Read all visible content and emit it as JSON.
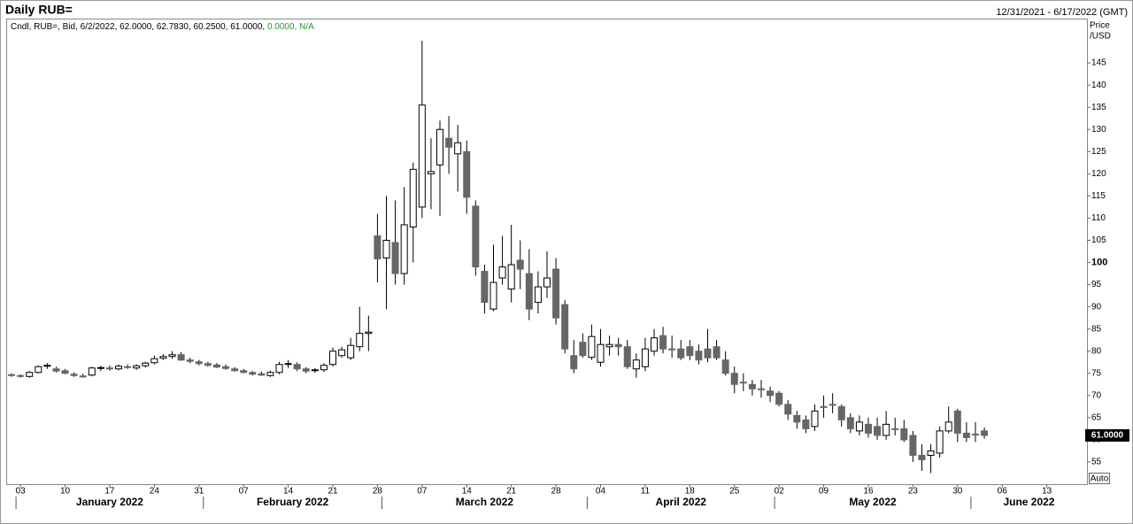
{
  "header": {
    "title": "Daily RUB=",
    "range": "12/31/2021 - 6/17/2022 (GMT)"
  },
  "chart_data": {
    "type": "candlestick",
    "legend_text": "Cndl, RUB=, Bid, 6/2/2022, 62.0000, 62.7830, 60.2500, 61.0000,",
    "legend_change": "0.0000, N/A",
    "y_label_1": "Price",
    "y_label_2": "/USD",
    "last_price_label": "61.0000",
    "auto_button": "Auto",
    "up_color": "#ffffff",
    "down_color": "#666666",
    "categories": [
      "2021-12-31",
      "2022-01-03",
      "2022-01-04",
      "2022-01-05",
      "2022-01-06",
      "2022-01-07",
      "2022-01-10",
      "2022-01-11",
      "2022-01-12",
      "2022-01-13",
      "2022-01-14",
      "2022-01-17",
      "2022-01-18",
      "2022-01-19",
      "2022-01-20",
      "2022-01-21",
      "2022-01-24",
      "2022-01-25",
      "2022-01-26",
      "2022-01-27",
      "2022-01-28",
      "2022-01-31",
      "2022-02-01",
      "2022-02-02",
      "2022-02-03",
      "2022-02-04",
      "2022-02-07",
      "2022-02-08",
      "2022-02-09",
      "2022-02-10",
      "2022-02-11",
      "2022-02-14",
      "2022-02-15",
      "2022-02-16",
      "2022-02-17",
      "2022-02-18",
      "2022-02-21",
      "2022-02-22",
      "2022-02-23",
      "2022-02-24",
      "2022-02-25",
      "2022-02-28",
      "2022-03-01",
      "2022-03-02",
      "2022-03-03",
      "2022-03-04",
      "2022-03-07",
      "2022-03-08",
      "2022-03-09",
      "2022-03-10",
      "2022-03-11",
      "2022-03-14",
      "2022-03-15",
      "2022-03-16",
      "2022-03-17",
      "2022-03-18",
      "2022-03-21",
      "2022-03-22",
      "2022-03-23",
      "2022-03-24",
      "2022-03-25",
      "2022-03-28",
      "2022-03-29",
      "2022-03-30",
      "2022-03-31",
      "2022-04-01",
      "2022-04-04",
      "2022-04-05",
      "2022-04-06",
      "2022-04-07",
      "2022-04-08",
      "2022-04-11",
      "2022-04-12",
      "2022-04-13",
      "2022-04-14",
      "2022-04-15",
      "2022-04-18",
      "2022-04-19",
      "2022-04-20",
      "2022-04-21",
      "2022-04-22",
      "2022-04-25",
      "2022-04-26",
      "2022-04-27",
      "2022-04-28",
      "2022-04-29",
      "2022-05-02",
      "2022-05-03",
      "2022-05-04",
      "2022-05-05",
      "2022-05-06",
      "2022-05-09",
      "2022-05-10",
      "2022-05-11",
      "2022-05-12",
      "2022-05-13",
      "2022-05-16",
      "2022-05-17",
      "2022-05-18",
      "2022-05-19",
      "2022-05-20",
      "2022-05-23",
      "2022-05-24",
      "2022-05-25",
      "2022-05-26",
      "2022-05-27",
      "2022-05-30",
      "2022-05-31",
      "2022-06-01",
      "2022-06-02",
      "2022-06-03",
      "2022-06-06",
      "2022-06-07",
      "2022-06-08",
      "2022-06-09",
      "2022-06-10",
      "2022-06-13",
      "2022-06-14",
      "2022-06-15",
      "2022-06-16",
      "2022-06-17"
    ],
    "open": [
      74.7,
      74.5,
      74.3,
      75.2,
      76.6,
      76,
      75.6,
      74.8,
      74.4,
      74.6,
      76.1,
      76.2,
      76,
      76.5,
      76.2,
      76.7,
      77.4,
      78.4,
      78.8,
      79.2,
      78,
      77.6,
      77.2,
      76.9,
      76.5,
      76,
      75.6,
      75.2,
      74.9,
      74.5,
      75.2,
      77,
      77,
      76,
      75.6,
      75.8,
      77,
      79,
      78.5,
      81,
      84,
      106,
      101,
      104.5,
      97.5,
      108,
      112.5,
      120,
      122,
      128,
      124.5,
      125,
      112.7,
      98,
      89.5,
      96.5,
      94,
      100.5,
      97.5,
      91,
      94.5,
      98.5,
      90.5,
      79,
      82,
      78.6,
      77.5,
      81,
      81.5,
      81,
      76,
      76.5,
      80,
      83.5,
      80.5,
      80.5,
      81,
      80,
      80.5,
      81,
      78,
      75,
      73,
      72.5,
      71.5,
      71,
      70.5,
      68,
      65.5,
      64.5,
      63,
      67.5,
      68,
      67.5,
      65,
      62,
      63.5,
      63,
      61,
      62.5,
      62.5,
      61,
      56.5,
      56.5,
      57,
      62,
      66.5,
      61.5,
      61.3,
      62,
      null,
      null,
      null,
      null,
      null,
      null,
      null,
      null,
      null,
      null,
      null
    ],
    "high": [
      75,
      74.8,
      75.5,
      76.8,
      77.3,
      76.5,
      76,
      75.2,
      74.9,
      76.5,
      76.7,
      76.8,
      77,
      77,
      77,
      77.6,
      79,
      79.3,
      80,
      79.8,
      78.5,
      78,
      77.6,
      77.3,
      77,
      76.4,
      76,
      75.5,
      75.4,
      75.6,
      77.6,
      78,
      77.5,
      76.4,
      76.2,
      77.3,
      80.8,
      81,
      83,
      90,
      88,
      111,
      115,
      114,
      117,
      122.5,
      150,
      128,
      132,
      133,
      131,
      127.5,
      114,
      99.5,
      104,
      106,
      108.5,
      105,
      103,
      98,
      102.5,
      101,
      91.5,
      82.5,
      84,
      86,
      85,
      83.5,
      83,
      82.5,
      79.5,
      83,
      85,
      85.5,
      83.5,
      82.5,
      82.5,
      81.5,
      85,
      82.5,
      80,
      76.5,
      75,
      73.5,
      73.5,
      72,
      71,
      69,
      66.5,
      65.5,
      68,
      70,
      70.5,
      68,
      66,
      65.5,
      65,
      65,
      66.5,
      65,
      64.5,
      62,
      59,
      59,
      63,
      67.5,
      67,
      64,
      64,
      62.783,
      null,
      null,
      null,
      null,
      null,
      null,
      null,
      null,
      null,
      null,
      null
    ],
    "low": [
      74.2,
      74,
      74,
      75,
      76,
      75.2,
      74.8,
      74.2,
      74,
      74.3,
      75.5,
      75.6,
      75.7,
      76,
      75.8,
      76.3,
      77,
      78,
      78.3,
      77.8,
      77.3,
      76.8,
      76.5,
      76.2,
      75.8,
      75.4,
      75,
      74.5,
      74.4,
      74.2,
      74.8,
      76.2,
      75.5,
      75,
      75.1,
      75.3,
      76.5,
      78.5,
      78,
      80,
      80,
      95.5,
      89.5,
      95,
      95,
      100,
      110,
      112,
      110.5,
      120,
      116,
      111,
      97,
      88.5,
      89,
      95,
      91,
      94,
      87,
      88.5,
      92,
      86,
      79.5,
      75,
      78.5,
      78,
      76.5,
      79,
      79,
      76,
      74,
      75.5,
      79,
      79.5,
      78.5,
      78,
      78,
      77,
      77.5,
      78,
      74.5,
      70.5,
      71,
      70,
      69.5,
      68.5,
      67.5,
      64.5,
      62.5,
      61.5,
      62,
      65,
      66,
      63,
      61.5,
      61,
      60.5,
      60,
      60,
      61,
      59.5,
      55,
      53,
      52.5,
      56,
      61.5,
      59.5,
      59.5,
      59.5,
      60.25,
      null,
      null,
      null,
      null,
      null,
      null,
      null,
      null,
      null,
      null,
      null
    ],
    "close": [
      74.6,
      74.3,
      75.2,
      76.5,
      76.8,
      75.5,
      75,
      74.5,
      74.3,
      76.2,
      76.3,
      76.1,
      76.6,
      76.3,
      76.7,
      77.3,
      78.3,
      78.8,
      79.2,
      78,
      77.7,
      77.2,
      76.8,
      76.4,
      76.1,
      75.6,
      75.2,
      74.8,
      74.6,
      75.2,
      77,
      77.2,
      76,
      75.5,
      75.8,
      76.8,
      80,
      80.3,
      81.3,
      84,
      84.3,
      100.8,
      105,
      97.5,
      108.5,
      121,
      135.5,
      120.5,
      130,
      126,
      127,
      114.7,
      99,
      91,
      95.5,
      99,
      99.5,
      98.5,
      89.5,
      94.5,
      96.5,
      87.5,
      80.5,
      76,
      79,
      83.3,
      81.5,
      81.5,
      81,
      76.5,
      78,
      80.5,
      83,
      80.5,
      80.3,
      78.5,
      79,
      78,
      78.5,
      78.5,
      75,
      72.5,
      72.8,
      71.5,
      71.3,
      70,
      68,
      65.8,
      64,
      62.5,
      66.5,
      67.3,
      67.8,
      64.5,
      62.5,
      64,
      61.5,
      61,
      63.5,
      62.3,
      60,
      56.5,
      55.5,
      57.5,
      62,
      64,
      61.5,
      60.5,
      61.1,
      61,
      null,
      null,
      null,
      null,
      null,
      null,
      null,
      null,
      null,
      null,
      null
    ],
    "ylim": [
      50,
      154.8
    ],
    "yticks": [
      55,
      60,
      65,
      70,
      75,
      80,
      85,
      90,
      95,
      100,
      105,
      110,
      115,
      120,
      125,
      130,
      135,
      140,
      145
    ],
    "bold_ytick": 100,
    "xticks": [
      {
        "value": "2022-01-03",
        "label": "03"
      },
      {
        "value": "2022-01-10",
        "label": "10"
      },
      {
        "value": "2022-01-17",
        "label": "17"
      },
      {
        "value": "2022-01-24",
        "label": "24"
      },
      {
        "value": "2022-01-31",
        "label": "31"
      },
      {
        "value": "2022-02-07",
        "label": "07"
      },
      {
        "value": "2022-02-14",
        "label": "14"
      },
      {
        "value": "2022-02-21",
        "label": "21"
      },
      {
        "value": "2022-02-28",
        "label": "28"
      },
      {
        "value": "2022-03-07",
        "label": "07"
      },
      {
        "value": "2022-03-14",
        "label": "14"
      },
      {
        "value": "2022-03-21",
        "label": "21"
      },
      {
        "value": "2022-03-28",
        "label": "28"
      },
      {
        "value": "2022-04-04",
        "label": "04"
      },
      {
        "value": "2022-04-11",
        "label": "11"
      },
      {
        "value": "2022-04-18",
        "label": "18"
      },
      {
        "value": "2022-04-25",
        "label": "25"
      },
      {
        "value": "2022-05-02",
        "label": "02"
      },
      {
        "value": "2022-05-09",
        "label": "09"
      },
      {
        "value": "2022-05-16",
        "label": "16"
      },
      {
        "value": "2022-05-23",
        "label": "23"
      },
      {
        "value": "2022-05-30",
        "label": "30"
      },
      {
        "value": "2022-06-06",
        "label": "06"
      },
      {
        "value": "2022-06-13",
        "label": "13"
      }
    ],
    "month_labels": [
      "January 2022",
      "February 2022",
      "March 2022",
      "April 2022",
      "May 2022",
      "June 2022"
    ]
  }
}
